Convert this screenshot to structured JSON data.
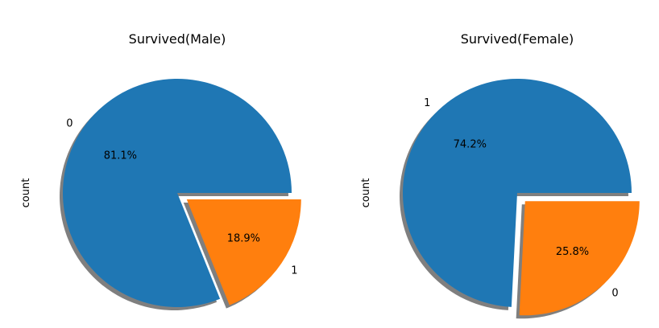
{
  "chart_data": [
    {
      "type": "pie",
      "title": "Survived(Male)",
      "ylabel": "count",
      "slices": [
        {
          "label": "0",
          "percent": 81.1,
          "color": "#1f77b4",
          "exploded": false
        },
        {
          "label": "1",
          "percent": 18.9,
          "color": "#ff7f0e",
          "exploded": true
        }
      ],
      "autopct": "%1.1f%%",
      "shadow": true
    },
    {
      "type": "pie",
      "title": "Survived(Female)",
      "ylabel": "count",
      "slices": [
        {
          "label": "1",
          "percent": 74.2,
          "color": "#1f77b4",
          "exploded": false
        },
        {
          "label": "0",
          "percent": 25.8,
          "color": "#ff7f0e",
          "exploded": true
        }
      ],
      "autopct": "%1.1f%%",
      "shadow": true
    }
  ]
}
